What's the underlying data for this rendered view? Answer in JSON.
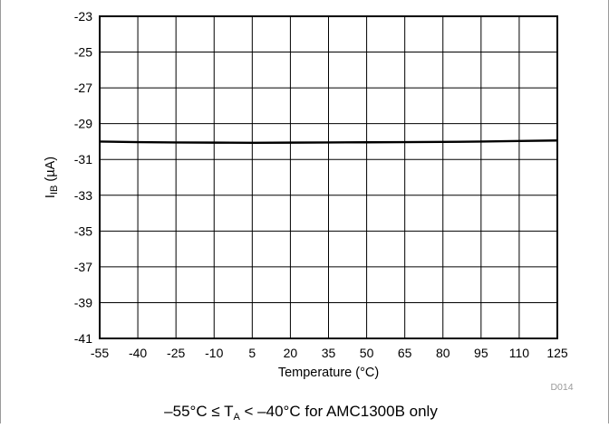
{
  "chart_data": {
    "type": "line",
    "xlabel": "Temperature (°C)",
    "ylabel_main": "I",
    "ylabel_sub": "IB",
    "ylabel_unit": " (µA)",
    "xlim": [
      -55,
      125
    ],
    "ylim": [
      -41,
      -23
    ],
    "x_ticks": [
      -55,
      -40,
      -25,
      -10,
      5,
      20,
      35,
      50,
      65,
      80,
      95,
      110,
      125
    ],
    "y_ticks": [
      -23,
      -25,
      -27,
      -29,
      -31,
      -33,
      -35,
      -37,
      -39,
      -41
    ],
    "grid": true,
    "series": [
      {
        "x": [
          -55,
          -40,
          -25,
          -10,
          5,
          20,
          35,
          50,
          65,
          80,
          95,
          110,
          125
        ],
        "y": [
          -30.0,
          -30.03,
          -30.05,
          -30.06,
          -30.07,
          -30.06,
          -30.05,
          -30.04,
          -30.03,
          -30.02,
          -30.0,
          -29.97,
          -29.94
        ]
      }
    ],
    "figure_code": "D014",
    "footnote": {
      "before": "–55°C ≤ T",
      "sub": "A",
      "after": " < –40°C for AMC1300B only"
    }
  },
  "colors": {
    "line": "#000000",
    "grid": "#000000",
    "frame_rule": "#9a9a9a"
  }
}
